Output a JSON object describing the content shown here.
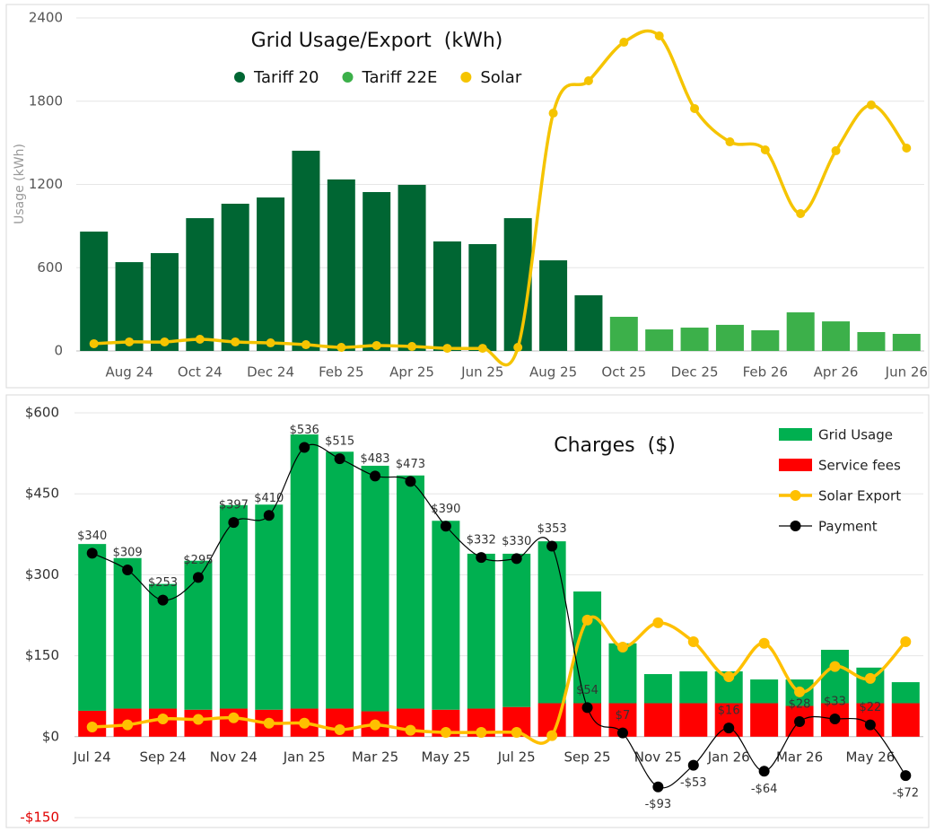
{
  "chart_data": [
    {
      "type": "bar",
      "title": "Grid Usage/Export  (kWh)",
      "y_label": "Usage (kWh)",
      "categories": [
        null,
        "Aug 24",
        null,
        "Oct 24",
        null,
        "Dec 24",
        null,
        "Feb 25",
        null,
        "Apr 25",
        null,
        "Jun 25",
        null,
        "Aug 25",
        null,
        "Oct 25",
        null,
        "Dec 25",
        null,
        "Feb 26",
        null,
        "Apr 26",
        null,
        "Jun 26"
      ],
      "series": [
        {
          "name": "Tariff 20",
          "type": "bar",
          "color": "#006633",
          "values": [
            860,
            640,
            705,
            957,
            1061,
            1106,
            1443,
            1236,
            1145,
            1197,
            789,
            770,
            957,
            653,
            401,
            null,
            null,
            null,
            null,
            null,
            null,
            null,
            null,
            null
          ]
        },
        {
          "name": "Tariff 22E",
          "type": "bar",
          "color": "#3cb04a",
          "values": [
            null,
            null,
            null,
            null,
            null,
            null,
            null,
            null,
            null,
            null,
            null,
            null,
            null,
            null,
            null,
            246,
            155,
            168,
            188,
            149,
            278,
            213,
            136,
            123
          ]
        },
        {
          "name": "Solar",
          "type": "line",
          "color": "#f5c400",
          "values": [
            52,
            65,
            65,
            84,
            65,
            58,
            45,
            26,
            39,
            32,
            19,
            19,
            26,
            1714,
            1947,
            2225,
            2271,
            1747,
            1507,
            1449,
            990,
            1443,
            1773,
            1462
          ]
        }
      ],
      "ylim": [
        0,
        2400
      ],
      "yticks": [
        0,
        600,
        1200,
        1800,
        2400
      ],
      "grid": true,
      "legend": "top"
    },
    {
      "type": "bar",
      "title": "Charges  ($)",
      "stacked": true,
      "categories": [
        "Jul 24",
        null,
        "Sep 24",
        null,
        "Nov 24",
        null,
        "Jan 25",
        null,
        "Mar 25",
        null,
        "May 25",
        null,
        "Jul 25",
        null,
        "Sep 25",
        null,
        "Nov 25",
        null,
        "Jan 26",
        null,
        "Mar 26",
        null,
        "May 26",
        null
      ],
      "series": [
        {
          "name": "Service fees",
          "type": "bar",
          "color": "#ff0000",
          "values": [
            48,
            52,
            52,
            50,
            52,
            50,
            52,
            52,
            47,
            52,
            50,
            52,
            55,
            62,
            62,
            62,
            62,
            62,
            62,
            62,
            57,
            62,
            62,
            62
          ]
        },
        {
          "name": "Grid Usage",
          "type": "bar",
          "color": "#00b050",
          "values": [
            309,
            279,
            231,
            276,
            377,
            380,
            508,
            476,
            455,
            432,
            350,
            287,
            284,
            300,
            207,
            111,
            54,
            59,
            59,
            44,
            49,
            99,
            66,
            39
          ]
        },
        {
          "name": "Solar Export",
          "type": "line",
          "color": "#ffc000",
          "values": [
            18,
            22,
            33,
            32,
            35,
            25,
            25,
            13,
            22,
            12,
            8,
            8,
            8,
            2,
            216,
            166,
            211,
            176,
            111,
            173,
            83,
            130,
            108,
            176
          ]
        },
        {
          "name": "Payment",
          "type": "line",
          "color": "#000000",
          "values": [
            340,
            309,
            253,
            295,
            397,
            410,
            536,
            515,
            483,
            473,
            390,
            332,
            330,
            353,
            54,
            7,
            -93,
            -53,
            16,
            -64,
            28,
            33,
            22,
            -72
          ],
          "value_labels": [
            "$340",
            "$309",
            "$253",
            "$295",
            "$397",
            "$410",
            "$536",
            "$515",
            "$483",
            "$473",
            "$390",
            "$332",
            "$330",
            "$353",
            "$54",
            "$7",
            "-$93",
            "-$53",
            "$16",
            "-$64",
            "$28",
            "$33",
            "$22",
            "-$72"
          ]
        }
      ],
      "ylim": [
        -150,
        600
      ],
      "yticks": [
        {
          "value": -150,
          "label": "-$150",
          "color": "#e00000"
        },
        {
          "value": 0,
          "label": "$0"
        },
        {
          "value": 150,
          "label": "$150"
        },
        {
          "value": 300,
          "label": "$300"
        },
        {
          "value": 450,
          "label": "$450"
        },
        {
          "value": 600,
          "label": "$600"
        }
      ],
      "grid": true,
      "legend": "top-right"
    }
  ]
}
